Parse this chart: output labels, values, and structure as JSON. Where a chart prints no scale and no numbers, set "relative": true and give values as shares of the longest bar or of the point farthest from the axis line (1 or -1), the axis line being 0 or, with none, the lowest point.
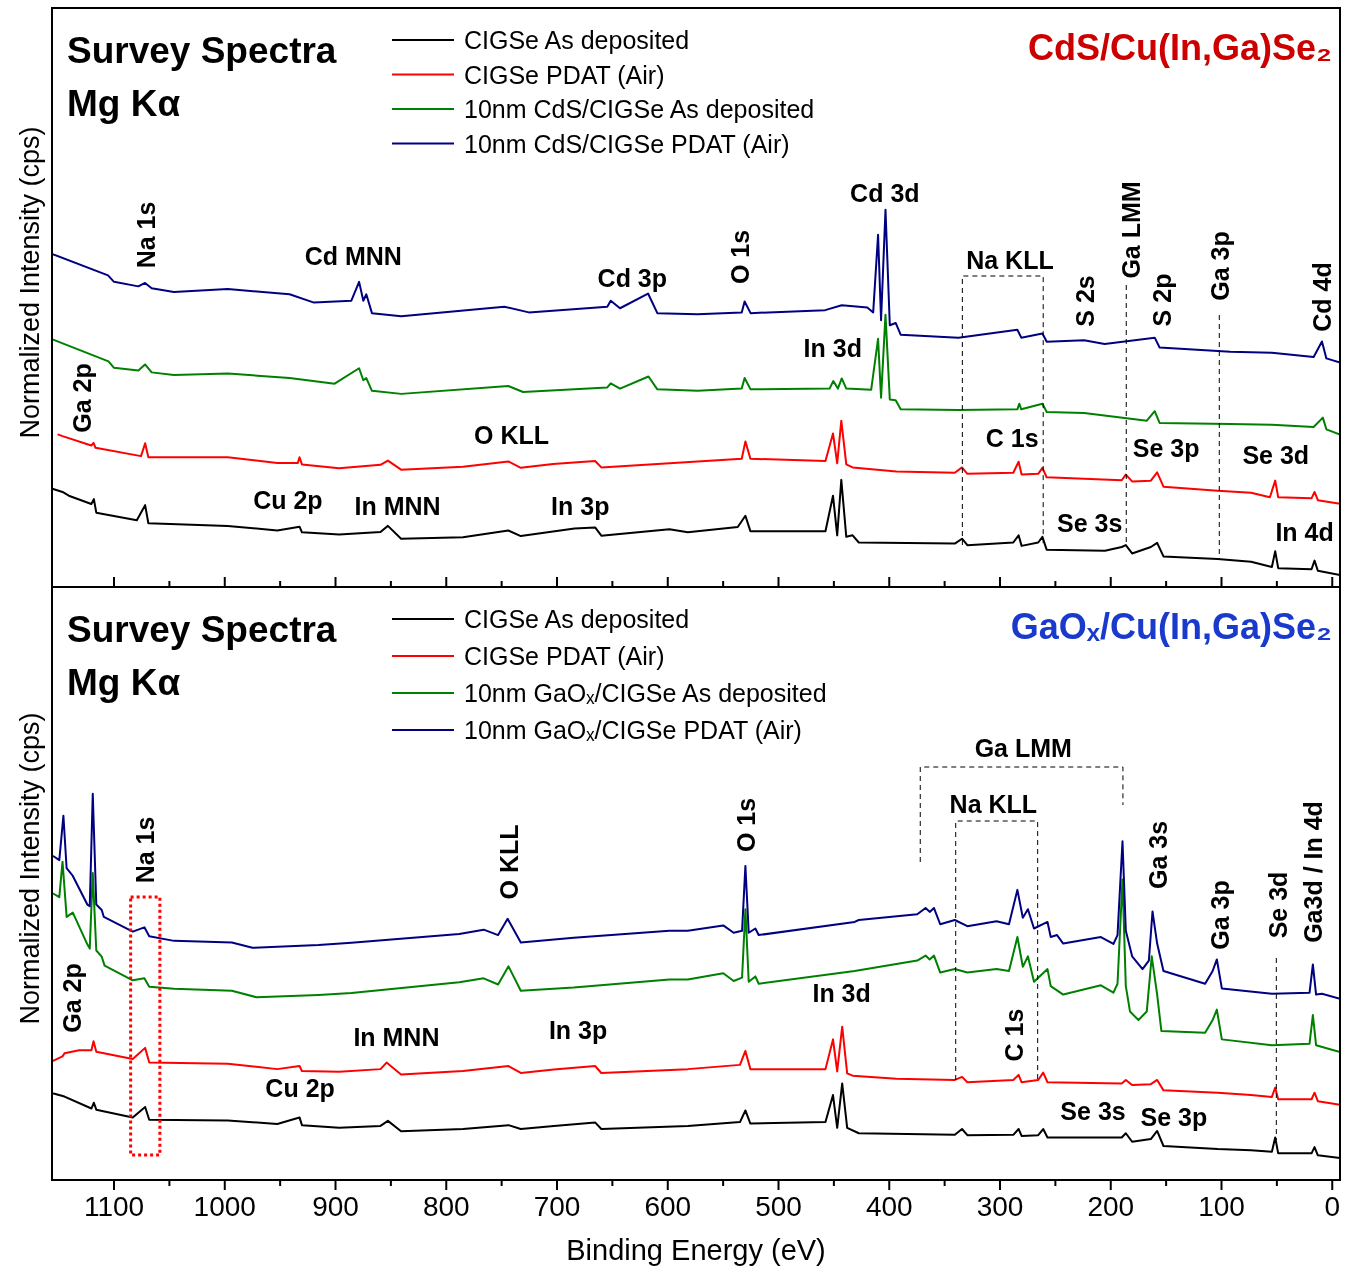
{
  "chart_data": [
    {
      "type": "line",
      "title": "Survey Spectra",
      "subtitle": "Mg Kα",
      "ylabel": "Normalized Intensity (cps)",
      "relative": true,
      "legend": "top",
      "tick_labels": false,
      "xlim": [
        1156,
        -7
      ],
      "xticks": [
        1100,
        {
          "value": 1050,
          "label": null
        },
        1000,
        {
          "value": 950,
          "label": null
        },
        900,
        {
          "value": 850,
          "label": null
        },
        800,
        {
          "value": 750,
          "label": null
        },
        700,
        {
          "value": 650,
          "label": null
        },
        600,
        {
          "value": 550,
          "label": null
        },
        500,
        {
          "value": 450,
          "label": null
        },
        400,
        {
          "value": 350,
          "label": null
        },
        300,
        {
          "value": 250,
          "label": null
        },
        200,
        {
          "value": 150,
          "label": null
        },
        100,
        {
          "value": 50,
          "label": null
        },
        0
      ],
      "annotations": [
        "CdS/Cu(In,Ga)Se₂",
        "Na 1s",
        "Cd MNN",
        "Cd 3p",
        "O 1s",
        "Cd 3d",
        "Na KLL",
        "S 2s",
        "Ga LMM",
        "S 2p",
        "Ga 3p",
        "Cd 4d",
        "In 3d",
        "Ga 2p",
        "O KLL",
        "C 1s",
        "Se 3p",
        "Se 3d",
        "Cu 2p",
        "In MNN",
        "In 3p",
        "Se 3s",
        "In 4d"
      ],
      "series": [
        {
          "name": "CIGSe As deposited",
          "color": "#000000",
          "x": [
            1155,
            1146.5,
            1140.8,
            1120.5,
            1118.2,
            1116,
            1079.4,
            1071.9,
            1069,
            997.3,
            952.6,
            932.5,
            930.3,
            896.7,
            859.4,
            852.7,
            840.8,
            784.9,
            744,
            732.7,
            703.6,
            684.2,
            665.6,
            660,
            598.5,
            581.9,
            536.8,
            529.9,
            525.4,
            457.6,
            450.8,
            447,
            443.3,
            438.8,
            433.1,
            427.5,
            340.8,
            334.3,
            329.5,
            288,
            283.2,
            280.5,
            265.5,
            261.7,
            257.9,
            205.2,
            190.1,
            186.4,
            180.7,
            163.8,
            158.1,
            152.4,
            103.5,
            73.3,
            54.5,
            51.5,
            48.8,
            18.7,
            16,
            13,
            -7
          ],
          "values": [
            0.26,
            0.252,
            0.242,
            0.22,
            0.233,
            0.197,
            0.177,
            0.217,
            0.169,
            0.162,
            0.15,
            0.16,
            0.145,
            0.139,
            0.146,
            0.162,
            0.128,
            0.132,
            0.15,
            0.135,
            0.147,
            0.155,
            0.158,
            0.136,
            0.153,
            0.145,
            0.159,
            0.189,
            0.148,
            0.148,
            0.242,
            0.137,
            0.284,
            0.133,
            0.137,
            0.118,
            0.115,
            0.128,
            0.111,
            0.118,
            0.137,
            0.109,
            0.118,
            0.133,
            0.099,
            0.096,
            0.106,
            0.111,
            0.089,
            0.106,
            0.117,
            0.081,
            0.074,
            0.067,
            0.053,
            0.095,
            0.05,
            0.047,
            0.07,
            0.043,
            0.032
          ]
        },
        {
          "name": "CIGSe PDAT (Air)",
          "color": "#ff0000",
          "x": [
            1150.2,
            1146.5,
            1120.5,
            1118.5,
            1116.7,
            1075.6,
            1071.9,
            1069,
            997.3,
            952.6,
            934,
            932.5,
            930.3,
            896.7,
            859.4,
            852.7,
            840.8,
            784.9,
            744,
            732.7,
            703.6,
            665.6,
            660,
            573.1,
            533.2,
            529.9,
            525.4,
            457.6,
            450.8,
            447,
            443.3,
            438.8,
            433.1,
            393.5,
            340.8,
            334.3,
            329.5,
            288,
            283.2,
            280.5,
            265.5,
            261.7,
            257.9,
            190.1,
            186.4,
            180.7,
            163.8,
            158.1,
            152.4,
            103.5,
            73.3,
            56.3,
            51.5,
            48.8,
            18.7,
            16,
            13,
            -7
          ],
          "values": [
            0.404,
            0.4,
            0.375,
            0.382,
            0.369,
            0.347,
            0.381,
            0.344,
            0.344,
            0.329,
            0.329,
            0.344,
            0.325,
            0.315,
            0.324,
            0.335,
            0.311,
            0.319,
            0.333,
            0.316,
            0.326,
            0.334,
            0.317,
            0.333,
            0.34,
            0.386,
            0.34,
            0.334,
            0.407,
            0.328,
            0.441,
            0.325,
            0.317,
            0.306,
            0.303,
            0.317,
            0.3,
            0.303,
            0.332,
            0.298,
            0.3,
            0.316,
            0.291,
            0.283,
            0.298,
            0.28,
            0.282,
            0.304,
            0.266,
            0.255,
            0.25,
            0.238,
            0.282,
            0.238,
            0.235,
            0.252,
            0.23,
            0.221
          ]
        },
        {
          "name": "10nm CdS/CIGSe As deposited",
          "color": "#008000",
          "x": [
            1155,
            1105,
            1100,
            1078,
            1072,
            1066,
            1046,
            997,
            941.5,
            900.8,
            878.7,
            874.9,
            872.2,
            867.1,
            840.6,
            744,
            730.7,
            654.6,
            651.5,
            643.1,
            617.4,
            609.4,
            573.1,
            533.2,
            530.6,
            525.2,
            453.9,
            450.5,
            446.4,
            442.9,
            438.8,
            416.3,
            410.1,
            407.4,
            403.4,
            399.5,
            394.2,
            389.7,
            337.5,
            284.3,
            282.6,
            280.8,
            261.7,
            257.8,
            224.1,
            167.4,
            160.3,
            155.9,
            92.1,
            54.5,
            16.8,
            8.5,
            5.3,
            -7
          ],
          "values": [
            0.656,
            0.598,
            0.581,
            0.574,
            0.59,
            0.569,
            0.562,
            0.566,
            0.554,
            0.539,
            0.58,
            0.548,
            0.554,
            0.52,
            0.512,
            0.533,
            0.517,
            0.529,
            0.54,
            0.526,
            0.558,
            0.524,
            0.52,
            0.526,
            0.554,
            0.524,
            0.526,
            0.546,
            0.526,
            0.553,
            0.526,
            0.523,
            0.658,
            0.502,
            0.722,
            0.497,
            0.495,
            0.471,
            0.469,
            0.471,
            0.486,
            0.471,
            0.486,
            0.464,
            0.461,
            0.441,
            0.466,
            0.435,
            0.432,
            0.43,
            0.424,
            0.449,
            0.418,
            0.404
          ]
        },
        {
          "name": "10nm CdS/CIGSe PDAT (Air)",
          "color": "#000080",
          "x": [
            1155,
            1105.4,
            1100,
            1078,
            1072,
            1066,
            1046,
            997.3,
            941.5,
            919.4,
            885.7,
            878.7,
            874.9,
            872.2,
            867.1,
            840.6,
            747.6,
            725.4,
            654.6,
            651.5,
            643.1,
            617.8,
            609.4,
            573.1,
            533.2,
            530.6,
            525.2,
            457.9,
            442.9,
            419.8,
            414.5,
            410.1,
            407.4,
            403.4,
            399.5,
            394.2,
            389.7,
            337.5,
            284.3,
            280.8,
            261.7,
            257.8,
            224.1,
            205.5,
            160.3,
            155.9,
            92.1,
            54.5,
            16.8,
            9.3,
            5.3,
            -7
          ],
          "values": [
            0.882,
            0.826,
            0.809,
            0.797,
            0.806,
            0.792,
            0.782,
            0.79,
            0.776,
            0.754,
            0.759,
            0.809,
            0.759,
            0.776,
            0.726,
            0.718,
            0.743,
            0.728,
            0.743,
            0.759,
            0.739,
            0.778,
            0.726,
            0.723,
            0.728,
            0.757,
            0.726,
            0.734,
            0.747,
            0.741,
            0.728,
            0.934,
            0.707,
            1,
            0.694,
            0.7,
            0.669,
            0.661,
            0.682,
            0.661,
            0.672,
            0.65,
            0.654,
            0.644,
            0.661,
            0.635,
            0.624,
            0.621,
            0.61,
            0.651,
            0.606,
            0.595
          ]
        }
      ]
    },
    {
      "type": "line",
      "title": "Survey Spectra",
      "subtitle": "Mg Kα",
      "xlabel": "Binding Energy (eV)",
      "ylabel": "Normalized Intensity (cps)",
      "relative": true,
      "legend": "top",
      "tick_labels": "x",
      "xlim": [
        1156,
        -7
      ],
      "xticks": [
        1100,
        {
          "value": 1050,
          "label": null
        },
        1000,
        {
          "value": 950,
          "label": null
        },
        900,
        {
          "value": 850,
          "label": null
        },
        800,
        {
          "value": 750,
          "label": null
        },
        700,
        {
          "value": 650,
          "label": null
        },
        600,
        {
          "value": 550,
          "label": null
        },
        500,
        {
          "value": 450,
          "label": null
        },
        400,
        {
          "value": 350,
          "label": null
        },
        300,
        {
          "value": 250,
          "label": null
        },
        200,
        {
          "value": 150,
          "label": null
        },
        100,
        {
          "value": 50,
          "label": null
        },
        0
      ],
      "annotations": [
        "GaOₓ/Cu(In,Ga)Se₂",
        "Ga 2p",
        "Na 1s",
        "O KLL",
        "O 1s",
        "Ga LMM",
        "Na KLL",
        "Ga 3s",
        "Ga 3p",
        "Se 3d",
        "Ga3d / In 4d",
        "In 3d",
        "C 1s",
        "In MNN",
        "In 3p",
        "Cu 2p",
        "Se 3s",
        "Se 3p"
      ],
      "series": [
        {
          "name": "CIGSe As deposited",
          "color": "#000000",
          "x": [
            1154.6,
            1144.7,
            1120.4,
            1118.2,
            1116,
            1083.1,
            1071.9,
            1068.2,
            997.3,
            952.6,
            932.5,
            930.3,
            896.7,
            859.4,
            852.7,
            840.8,
            784.9,
            743.8,
            732.7,
            702.8,
            665.6,
            660,
            581.9,
            534.8,
            529.9,
            525.4,
            457.6,
            450.8,
            447,
            442.5,
            438,
            427.5,
            340.8,
            334.3,
            329.5,
            288,
            283.2,
            280.5,
            265.5,
            261,
            257.1,
            190.1,
            186.4,
            180.7,
            163.8,
            158.1,
            152.4,
            103.5,
            73.3,
            54.5,
            51.5,
            48.8,
            18.7,
            16,
            13,
            -7
          ],
          "values": [
            0.224,
            0.216,
            0.185,
            0.2,
            0.182,
            0.162,
            0.189,
            0.156,
            0.154,
            0.145,
            0.162,
            0.142,
            0.135,
            0.14,
            0.153,
            0.126,
            0.132,
            0.142,
            0.132,
            0.14,
            0.149,
            0.132,
            0.14,
            0.15,
            0.18,
            0.146,
            0.15,
            0.22,
            0.135,
            0.25,
            0.135,
            0.121,
            0.117,
            0.132,
            0.116,
            0.117,
            0.132,
            0.114,
            0.116,
            0.132,
            0.11,
            0.11,
            0.121,
            0.099,
            0.106,
            0.127,
            0.088,
            0.08,
            0.077,
            0.073,
            0.11,
            0.069,
            0.069,
            0.085,
            0.064,
            0.057
          ]
        },
        {
          "name": "CIGSe PDAT (Air)",
          "color": "#ff0000",
          "x": [
            1154.6,
            1146.5,
            1144.7,
            1131.5,
            1120.4,
            1118.5,
            1116,
            1083.1,
            1071.9,
            1068.2,
            997.3,
            952.6,
            932.5,
            930.3,
            896.7,
            859.4,
            853.9,
            840.8,
            784.9,
            743.8,
            732.7,
            702.8,
            665.6,
            660,
            581.9,
            534.8,
            529.9,
            525.4,
            457.6,
            450.8,
            447,
            442.5,
            438,
            433.1,
            393.5,
            340.8,
            334.3,
            329.5,
            288,
            283.2,
            280.5,
            265.5,
            261,
            257.1,
            190.1,
            186.4,
            180.7,
            163.8,
            158.1,
            152.4,
            103.5,
            73.3,
            54.5,
            51.5,
            48.8,
            18.7,
            16,
            13,
            -7
          ],
          "values": [
            0.309,
            0.32,
            0.328,
            0.336,
            0.336,
            0.359,
            0.332,
            0.313,
            0.342,
            0.304,
            0.301,
            0.287,
            0.295,
            0.282,
            0.28,
            0.287,
            0.304,
            0.273,
            0.282,
            0.295,
            0.277,
            0.286,
            0.295,
            0.277,
            0.287,
            0.298,
            0.334,
            0.287,
            0.287,
            0.364,
            0.281,
            0.397,
            0.276,
            0.27,
            0.262,
            0.259,
            0.267,
            0.253,
            0.259,
            0.272,
            0.253,
            0.259,
            0.278,
            0.253,
            0.25,
            0.259,
            0.246,
            0.248,
            0.259,
            0.232,
            0.226,
            0.22,
            0.215,
            0.239,
            0.209,
            0.209,
            0.226,
            0.204,
            0.195
          ]
        },
        {
          "name": "10nm GaOₓ/CIGSe As deposited",
          "color": "#008000",
          "x": [
            1154.6,
            1149.4,
            1146.5,
            1142.8,
            1137.2,
            1124.1,
            1121.9,
            1119.2,
            1116,
            1111.1,
            1108.5,
            1083.1,
            1072.6,
            1068.2,
            1045.8,
            993.6,
            971.3,
            915.3,
            885.6,
            788.3,
            766.2,
            753.2,
            743.8,
            732.7,
            684.9,
            598.5,
            581.9,
            549.9,
            540.5,
            532.9,
            529.9,
            526.9,
            520.9,
            517.9,
            431.3,
            374.7,
            367.2,
            363.5,
            359.6,
            354,
            340.8,
            329.5,
            303.1,
            291.9,
            284.3,
            279.4,
            274.8,
            269.3,
            257.1,
            254.2,
            242.9,
            208.9,
            197.6,
            193.9,
            189.4,
            186.4,
            182.6,
            175,
            167.5,
            163,
            158.1,
            154.3,
            114.8,
            108,
            104.2,
            99.7,
            54.5,
            20.5,
            17.5,
            14.6,
            -7
          ],
          "values": [
            0.741,
            0.732,
            0.824,
            0.681,
            0.692,
            0.61,
            0.599,
            0.795,
            0.594,
            0.578,
            0.555,
            0.517,
            0.522,
            0.5,
            0.495,
            0.49,
            0.473,
            0.479,
            0.484,
            0.512,
            0.522,
            0.506,
            0.553,
            0.49,
            0.498,
            0.519,
            0.519,
            0.535,
            0.515,
            0.524,
            0.701,
            0.513,
            0.527,
            0.508,
            0.541,
            0.568,
            0.581,
            0.571,
            0.581,
            0.537,
            0.546,
            0.537,
            0.546,
            0.541,
            0.629,
            0.552,
            0.579,
            0.513,
            0.546,
            0.502,
            0.48,
            0.504,
            0.485,
            0.508,
            0.778,
            0.502,
            0.436,
            0.414,
            0.436,
            0.579,
            0.48,
            0.386,
            0.381,
            0.414,
            0.441,
            0.364,
            0.349,
            0.353,
            0.427,
            0.349,
            0.331
          ]
        },
        {
          "name": "10nm GaOₓ/CIGSe PDAT (Air)",
          "color": "#000080",
          "x": [
            1154.6,
            1149.4,
            1145.7,
            1142.8,
            1137.2,
            1124.1,
            1121.9,
            1119.2,
            1116,
            1111.1,
            1109.2,
            1083.1,
            1072.6,
            1068.2,
            1045.8,
            993.6,
            975,
            915.3,
            885.6,
            788.3,
            766.2,
            753.2,
            744.6,
            732.7,
            684.9,
            598.5,
            581.9,
            549.9,
            540.5,
            532.9,
            529.9,
            526.9,
            520.9,
            517.9,
            431.3,
            427.5,
            374.7,
            367.2,
            363.5,
            359.6,
            354,
            340.8,
            329.5,
            303.1,
            291.9,
            284.3,
            279.4,
            274.8,
            269.3,
            257.1,
            254.2,
            248.5,
            242.9,
            208.9,
            197.6,
            193.9,
            189.4,
            186.4,
            180.7,
            171.3,
            165.6,
            162.3,
            158.1,
            152.4,
            114.8,
            108,
            104.2,
            99.7,
            54.5,
            20.5,
            17.5,
            14.6,
            9.3,
            -7
          ],
          "values": [
            0.838,
            0.828,
            0.943,
            0.807,
            0.787,
            0.713,
            0.709,
            1,
            0.713,
            0.699,
            0.681,
            0.643,
            0.654,
            0.631,
            0.619,
            0.615,
            0.601,
            0.608,
            0.614,
            0.637,
            0.648,
            0.634,
            0.676,
            0.615,
            0.627,
            0.645,
            0.645,
            0.659,
            0.64,
            0.645,
            0.813,
            0.64,
            0.651,
            0.634,
            0.668,
            0.673,
            0.688,
            0.704,
            0.694,
            0.704,
            0.662,
            0.673,
            0.657,
            0.67,
            0.662,
            0.751,
            0.679,
            0.701,
            0.651,
            0.668,
            0.629,
            0.634,
            0.612,
            0.629,
            0.611,
            0.634,
            0.877,
            0.645,
            0.579,
            0.546,
            0.568,
            0.695,
            0.612,
            0.541,
            0.508,
            0.541,
            0.571,
            0.496,
            0.482,
            0.485,
            0.558,
            0.48,
            0.482,
            0.469
          ]
        }
      ]
    }
  ]
}
